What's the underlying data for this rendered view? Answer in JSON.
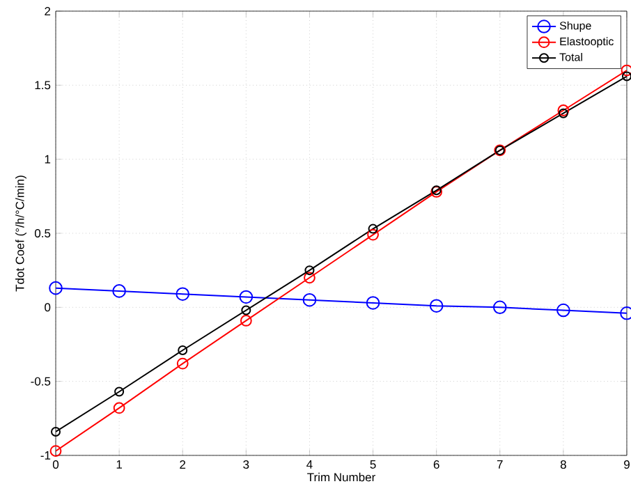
{
  "chart_data": {
    "type": "line",
    "xlabel": "Trim Number",
    "ylabel": "Tdot Coef (°/h/°C/min)",
    "x": [
      0,
      1,
      2,
      3,
      4,
      5,
      6,
      7,
      8,
      9
    ],
    "series": [
      {
        "name": "Shupe",
        "color": "#0000ff",
        "values": [
          0.13,
          0.11,
          0.09,
          0.07,
          0.05,
          0.03,
          0.01,
          0.0,
          -0.02,
          -0.04
        ]
      },
      {
        "name": "Elastooptic",
        "color": "#ff0000",
        "values": [
          -0.97,
          -0.68,
          -0.38,
          -0.09,
          0.2,
          0.49,
          0.78,
          1.06,
          1.33,
          1.6
        ]
      },
      {
        "name": "Total",
        "color": "#000000",
        "values": [
          -0.84,
          -0.57,
          -0.29,
          -0.02,
          0.25,
          0.53,
          0.79,
          1.06,
          1.31,
          1.56
        ]
      }
    ],
    "xlim": [
      0,
      9
    ],
    "ylim": [
      -1,
      2
    ],
    "xticks": [
      0,
      1,
      2,
      3,
      4,
      5,
      6,
      7,
      8,
      9
    ],
    "yticks": [
      -1,
      -0.5,
      0,
      0.5,
      1,
      1.5,
      2
    ],
    "grid": true,
    "legend": "top right",
    "marker": "circle",
    "line_style": "solid"
  }
}
